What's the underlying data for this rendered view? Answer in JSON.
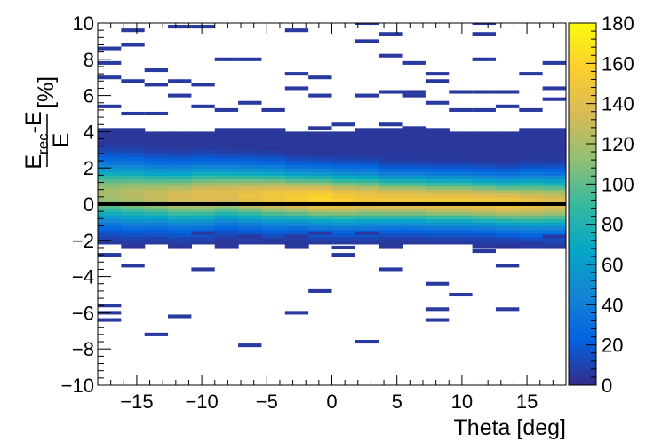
{
  "chart_data": {
    "type": "heatmap",
    "title": "",
    "xlabel": "Theta [deg]",
    "ylabel": {
      "numerator_main": "E",
      "numerator_sub": "rec",
      "numerator_rest": "-E",
      "denominator": "E",
      "unit": "[%]"
    },
    "xlim": [
      -18,
      18
    ],
    "ylim": [
      -10,
      10
    ],
    "x_ticks": [
      -15,
      -10,
      -5,
      0,
      5,
      10,
      15
    ],
    "x_tick_labels": [
      "−15",
      "−10",
      "−5",
      "0",
      "5",
      "10",
      "15"
    ],
    "y_ticks": [
      -10,
      -8,
      -6,
      -4,
      -2,
      0,
      2,
      4,
      6,
      8,
      10
    ],
    "y_tick_labels": [
      "−10",
      "−8",
      "−6",
      "−4",
      "−2",
      "0",
      "2",
      "4",
      "6",
      "8",
      "10"
    ],
    "colorbar": {
      "min": 0,
      "max": 180,
      "ticks": [
        0,
        20,
        40,
        60,
        80,
        100,
        120,
        140,
        160,
        180
      ],
      "palette": "kBird",
      "colors": [
        "#352a87",
        "#0363e1",
        "#1485d4",
        "#06a7c6",
        "#38b99e",
        "#92bf73",
        "#d9ba56",
        "#fcce2e",
        "#f9fb0e"
      ]
    },
    "reference_line": {
      "y": 0,
      "color": "#000000"
    },
    "bins": {
      "x_edges": [
        -18,
        -16.2,
        -14.4,
        -12.6,
        -10.8,
        -9,
        -7.2,
        -5.4,
        -3.6,
        -1.8,
        0,
        1.8,
        3.6,
        5.4,
        7.2,
        9,
        10.8,
        12.6,
        14.4,
        16.2,
        18
      ],
      "y_bin_width": 0.2
    },
    "band_profile": {
      "description": "per-theta-bin counts of the core resolution band (y centre, width sigma, peak count)",
      "x_centers": [
        -17.1,
        -15.3,
        -13.5,
        -11.7,
        -9.9,
        -8.1,
        -6.3,
        -4.5,
        -2.7,
        -0.9,
        0.9,
        2.7,
        4.5,
        6.3,
        8.1,
        9.9,
        11.7,
        13.5,
        15.3,
        17.1
      ],
      "mean": [
        0.6,
        0.55,
        0.5,
        0.45,
        0.5,
        0.55,
        0.5,
        0.45,
        0.4,
        0.35,
        0.3,
        0.3,
        0.25,
        0.25,
        0.2,
        0.2,
        0.15,
        0.1,
        0.1,
        0.1
      ],
      "sigma": [
        1.1,
        1.1,
        1.05,
        1.05,
        1.05,
        1.0,
        1.0,
        1.0,
        0.95,
        0.95,
        0.95,
        0.95,
        0.9,
        0.9,
        0.9,
        0.9,
        0.9,
        0.9,
        0.95,
        0.95
      ],
      "peak": [
        120,
        125,
        130,
        135,
        140,
        140,
        145,
        150,
        155,
        160,
        155,
        150,
        150,
        150,
        150,
        150,
        150,
        150,
        145,
        140
      ]
    },
    "outliers": [
      [
        -17.1,
        8.5
      ],
      [
        -17.1,
        7.7
      ],
      [
        -17.1,
        6.9
      ],
      [
        -17.1,
        5.3
      ],
      [
        -17.1,
        -2.9
      ],
      [
        -17.1,
        -5.7
      ],
      [
        -17.1,
        -6.1
      ],
      [
        -17.1,
        -6.5
      ],
      [
        -15.3,
        9.5
      ],
      [
        -15.3,
        8.7
      ],
      [
        -15.3,
        6.7
      ],
      [
        -15.3,
        4.9
      ],
      [
        -15.3,
        -3.5
      ],
      [
        -13.5,
        7.3
      ],
      [
        -13.5,
        6.5
      ],
      [
        -13.5,
        4.9
      ],
      [
        -13.5,
        -7.3
      ],
      [
        -11.7,
        9.7
      ],
      [
        -11.7,
        6.7
      ],
      [
        -11.7,
        5.9
      ],
      [
        -11.7,
        -6.3
      ],
      [
        -9.9,
        9.7
      ],
      [
        -9.9,
        6.5
      ],
      [
        -9.9,
        5.3
      ],
      [
        -9.9,
        -3.7
      ],
      [
        -9.9,
        -1.7
      ],
      [
        -8.1,
        7.9
      ],
      [
        -8.1,
        5.1
      ],
      [
        -6.3,
        7.9
      ],
      [
        -6.3,
        5.5
      ],
      [
        -6.3,
        -1.9
      ],
      [
        -6.3,
        -7.9
      ],
      [
        -4.5,
        5.1
      ],
      [
        -4.5,
        -2.1
      ],
      [
        -2.7,
        9.5
      ],
      [
        -2.7,
        7.1
      ],
      [
        -2.7,
        6.3
      ],
      [
        -2.7,
        -1.9
      ],
      [
        -2.7,
        -6.1
      ],
      [
        -0.9,
        6.9
      ],
      [
        -0.9,
        5.9
      ],
      [
        -0.9,
        4.1
      ],
      [
        -0.9,
        -1.7
      ],
      [
        -0.9,
        -4.9
      ],
      [
        0.9,
        4.3
      ],
      [
        0.9,
        -2.5
      ],
      [
        0.9,
        -2.9
      ],
      [
        2.7,
        9.9
      ],
      [
        2.7,
        8.9
      ],
      [
        2.7,
        5.9
      ],
      [
        2.7,
        -1.7
      ],
      [
        2.7,
        -7.7
      ],
      [
        4.5,
        9.3
      ],
      [
        4.5,
        8.1
      ],
      [
        4.5,
        6.1
      ],
      [
        4.5,
        4.3
      ],
      [
        4.5,
        -3.7
      ],
      [
        6.3,
        7.7
      ],
      [
        6.3,
        6.1
      ],
      [
        6.3,
        5.9
      ],
      [
        6.3,
        4.1
      ],
      [
        8.1,
        7.1
      ],
      [
        8.1,
        6.7
      ],
      [
        8.1,
        5.5
      ],
      [
        8.1,
        -4.5
      ],
      [
        8.1,
        -5.9
      ],
      [
        8.1,
        -6.5
      ],
      [
        9.9,
        6.1
      ],
      [
        9.9,
        5.1
      ],
      [
        9.9,
        -5.1
      ],
      [
        11.7,
        9.9
      ],
      [
        11.7,
        9.3
      ],
      [
        11.7,
        7.9
      ],
      [
        11.7,
        6.1
      ],
      [
        11.7,
        5.1
      ],
      [
        11.7,
        -2.7
      ],
      [
        13.5,
        6.1
      ],
      [
        13.5,
        5.3
      ],
      [
        13.5,
        -3.5
      ],
      [
        13.5,
        -5.9
      ],
      [
        15.3,
        7.1
      ],
      [
        15.3,
        5.1
      ],
      [
        15.3,
        -2.3
      ],
      [
        17.1,
        7.7
      ],
      [
        17.1,
        6.3
      ],
      [
        17.1,
        5.7
      ],
      [
        17.1,
        -1.9
      ]
    ]
  }
}
